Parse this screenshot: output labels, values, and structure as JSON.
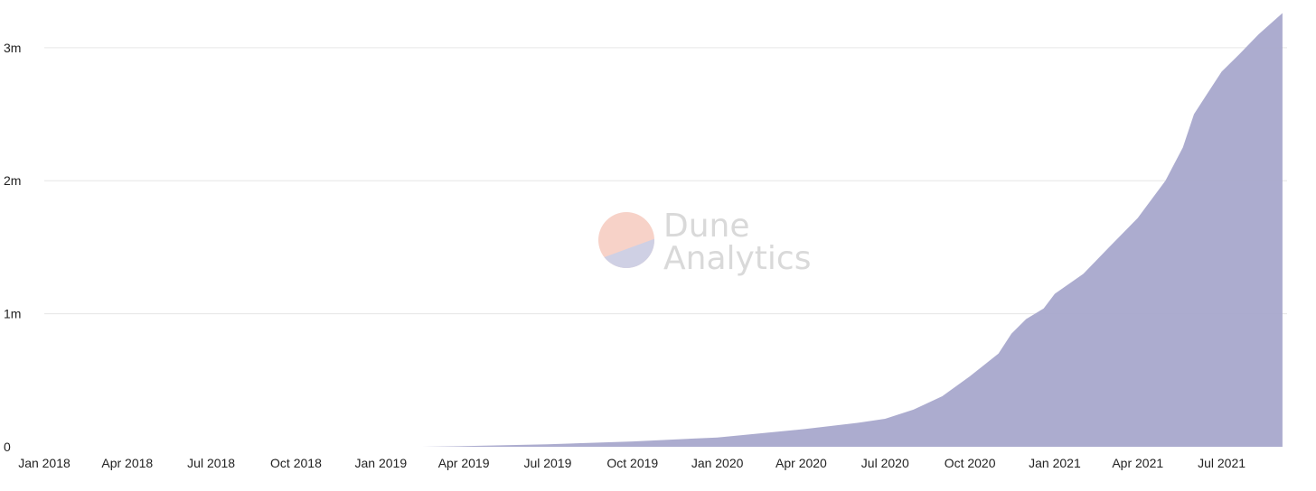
{
  "watermark": {
    "line1": "Dune",
    "line2": "Analytics",
    "logo_top_color": "#f7d2c8",
    "logo_bottom_color": "#cfd0e4"
  },
  "colors": {
    "area_fill": "#a8a8cc",
    "grid": "#e6e6e6",
    "text": "#222222",
    "background": "#ffffff"
  },
  "chart_data": {
    "type": "area",
    "title": "",
    "xlabel": "",
    "ylabel": "",
    "grid": true,
    "legend": "none",
    "x_ticks": [
      {
        "date": "2018-01-01",
        "label": "Jan 2018"
      },
      {
        "date": "2018-04-01",
        "label": "Apr 2018"
      },
      {
        "date": "2018-07-01",
        "label": "Jul 2018"
      },
      {
        "date": "2018-10-01",
        "label": "Oct 2018"
      },
      {
        "date": "2019-01-01",
        "label": "Jan 2019"
      },
      {
        "date": "2019-04-01",
        "label": "Apr 2019"
      },
      {
        "date": "2019-07-01",
        "label": "Jul 2019"
      },
      {
        "date": "2019-10-01",
        "label": "Oct 2019"
      },
      {
        "date": "2020-01-01",
        "label": "Jan 2020"
      },
      {
        "date": "2020-04-01",
        "label": "Apr 2020"
      },
      {
        "date": "2020-07-01",
        "label": "Jul 2020"
      },
      {
        "date": "2020-10-01",
        "label": "Oct 2020"
      },
      {
        "date": "2021-01-01",
        "label": "Jan 2021"
      },
      {
        "date": "2021-04-01",
        "label": "Apr 2021"
      },
      {
        "date": "2021-07-01",
        "label": "Jul 2021"
      }
    ],
    "y_ticks": [
      {
        "value": 0,
        "label": "0"
      },
      {
        "value": 1000000,
        "label": "1m"
      },
      {
        "value": 2000000,
        "label": "2m"
      },
      {
        "value": 3000000,
        "label": "3m"
      }
    ],
    "xlim": [
      "2018-01-01",
      "2021-09-10"
    ],
    "ylim": [
      0,
      3250000
    ],
    "series": [
      {
        "points": [
          [
            "2019-02-15",
            0
          ],
          [
            "2019-04-01",
            5000
          ],
          [
            "2019-07-01",
            18000
          ],
          [
            "2019-10-01",
            40000
          ],
          [
            "2020-01-01",
            70000
          ],
          [
            "2020-04-01",
            130000
          ],
          [
            "2020-06-01",
            180000
          ],
          [
            "2020-07-01",
            210000
          ],
          [
            "2020-08-01",
            280000
          ],
          [
            "2020-09-01",
            380000
          ],
          [
            "2020-10-01",
            530000
          ],
          [
            "2020-11-01",
            700000
          ],
          [
            "2020-11-15",
            850000
          ],
          [
            "2020-12-01",
            960000
          ],
          [
            "2020-12-20",
            1040000
          ],
          [
            "2021-01-01",
            1150000
          ],
          [
            "2021-02-01",
            1300000
          ],
          [
            "2021-03-01",
            1500000
          ],
          [
            "2021-04-01",
            1720000
          ],
          [
            "2021-05-01",
            2000000
          ],
          [
            "2021-05-20",
            2250000
          ],
          [
            "2021-06-01",
            2500000
          ],
          [
            "2021-06-15",
            2650000
          ],
          [
            "2021-07-01",
            2820000
          ],
          [
            "2021-07-20",
            2950000
          ],
          [
            "2021-08-10",
            3100000
          ],
          [
            "2021-09-05",
            3260000
          ]
        ]
      }
    ]
  }
}
